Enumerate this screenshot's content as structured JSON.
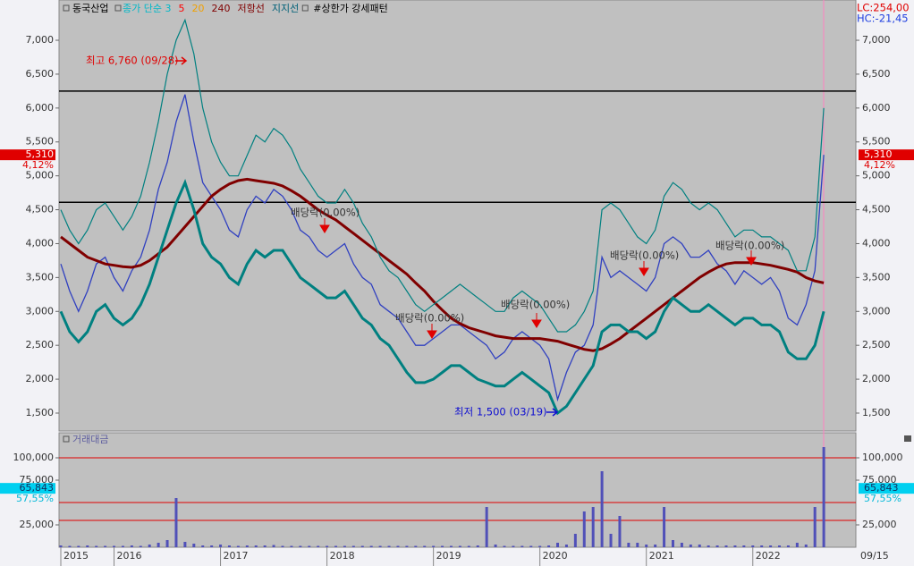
{
  "header": {
    "stock": "동국산업",
    "legend": [
      {
        "text": "종가 단순 3",
        "color": "#00b8c8"
      },
      {
        "text": "5",
        "color": "#ff0000"
      },
      {
        "text": "20",
        "color": "#f0a000"
      },
      {
        "text": "240",
        "color": "#800000"
      },
      {
        "text": "저항선",
        "color": "#800000"
      },
      {
        "text": "지지선",
        "color": "#006078"
      },
      {
        "text": "#상한가 강세패턴",
        "color": "#000000"
      }
    ],
    "lc": "LC:254,00",
    "hc": "HC:-21,45",
    "x_end_label": "09/15"
  },
  "chart_data": [
    {
      "type": "line",
      "categories": [
        "2015",
        null,
        null,
        null,
        null,
        null,
        "2016",
        null,
        null,
        null,
        null,
        null,
        null,
        null,
        null,
        null,
        null,
        null,
        "2017",
        null,
        null,
        null,
        null,
        null,
        null,
        null,
        null,
        null,
        null,
        null,
        "2018",
        null,
        null,
        null,
        null,
        null,
        null,
        null,
        null,
        null,
        null,
        null,
        "2019",
        null,
        null,
        null,
        null,
        null,
        null,
        null,
        null,
        null,
        null,
        null,
        "2020",
        null,
        null,
        null,
        null,
        null,
        null,
        null,
        null,
        null,
        null,
        null,
        "2021",
        null,
        null,
        null,
        null,
        null,
        null,
        null,
        null,
        null,
        null,
        null,
        "2022",
        null,
        null,
        null,
        null,
        null,
        null,
        null,
        null
      ],
      "series": [
        {
          "name": "종가",
          "color": "#3040c0",
          "values": [
            3700,
            3300,
            3000,
            3300,
            3700,
            3800,
            3500,
            3300,
            3600,
            3800,
            4200,
            4800,
            5200,
            5800,
            6200,
            5500,
            4900,
            4700,
            4500,
            4200,
            4100,
            4500,
            4700,
            4600,
            4800,
            4700,
            4500,
            4200,
            4100,
            3900,
            3800,
            3900,
            4000,
            3700,
            3500,
            3400,
            3100,
            3000,
            2900,
            2700,
            2500,
            2500,
            2600,
            2700,
            2800,
            2800,
            2700,
            2600,
            2500,
            2300,
            2400,
            2600,
            2700,
            2600,
            2500,
            2300,
            1700,
            2100,
            2400,
            2500,
            2800,
            3800,
            3500,
            3600,
            3500,
            3400,
            3300,
            3500,
            4000,
            4100,
            4000,
            3800,
            3800,
            3900,
            3700,
            3600,
            3400,
            3600,
            3500,
            3400,
            3500,
            3300,
            2900,
            2800,
            3100,
            3600,
            5310
          ]
        },
        {
          "name": "240",
          "color": "#800000",
          "width": 3,
          "values": [
            4100,
            4000,
            3900,
            3800,
            3750,
            3700,
            3680,
            3660,
            3650,
            3680,
            3750,
            3850,
            3950,
            4100,
            4250,
            4400,
            4550,
            4700,
            4800,
            4880,
            4930,
            4950,
            4930,
            4910,
            4890,
            4850,
            4780,
            4700,
            4600,
            4500,
            4420,
            4350,
            4250,
            4150,
            4050,
            3950,
            3850,
            3750,
            3650,
            3550,
            3420,
            3300,
            3150,
            3020,
            2900,
            2820,
            2760,
            2720,
            2680,
            2640,
            2620,
            2600,
            2600,
            2600,
            2600,
            2580,
            2560,
            2520,
            2480,
            2440,
            2420,
            2450,
            2520,
            2600,
            2700,
            2800,
            2900,
            3000,
            3100,
            3200,
            3300,
            3400,
            3500,
            3580,
            3650,
            3700,
            3720,
            3720,
            3720,
            3700,
            3680,
            3650,
            3620,
            3580,
            3500,
            3450,
            3420
          ]
        },
        {
          "name": "저항선",
          "color": "#008080",
          "width": 1.2,
          "values": [
            4500,
            4200,
            4000,
            4200,
            4500,
            4600,
            4400,
            4200,
            4400,
            4700,
            5200,
            5800,
            6500,
            7000,
            7300,
            6800,
            6000,
            5500,
            5200,
            5000,
            5000,
            5300,
            5600,
            5500,
            5700,
            5600,
            5400,
            5100,
            4900,
            4700,
            4600,
            4600,
            4800,
            4600,
            4300,
            4100,
            3800,
            3600,
            3500,
            3300,
            3100,
            3000,
            3100,
            3200,
            3300,
            3400,
            3300,
            3200,
            3100,
            3000,
            3000,
            3200,
            3300,
            3200,
            3100,
            2900,
            2700,
            2700,
            2800,
            3000,
            3300,
            4500,
            4600,
            4500,
            4300,
            4100,
            4000,
            4200,
            4700,
            4900,
            4800,
            4600,
            4500,
            4600,
            4500,
            4300,
            4100,
            4200,
            4200,
            4100,
            4100,
            4000,
            3900,
            3600,
            3600,
            4100,
            6000
          ]
        },
        {
          "name": "지지선",
          "color": "#008080",
          "width": 3,
          "values": [
            3000,
            2700,
            2550,
            2700,
            3000,
            3100,
            2900,
            2800,
            2900,
            3100,
            3400,
            3800,
            4200,
            4600,
            4900,
            4500,
            4000,
            3800,
            3700,
            3500,
            3400,
            3700,
            3900,
            3800,
            3900,
            3900,
            3700,
            3500,
            3400,
            3300,
            3200,
            3200,
            3300,
            3100,
            2900,
            2800,
            2600,
            2500,
            2300,
            2100,
            1950,
            1950,
            2000,
            2100,
            2200,
            2200,
            2100,
            2000,
            1950,
            1900,
            1900,
            2000,
            2100,
            2000,
            1900,
            1800,
            1500,
            1600,
            1800,
            2000,
            2200,
            2700,
            2800,
            2800,
            2700,
            2700,
            2600,
            2700,
            3000,
            3200,
            3100,
            3000,
            3000,
            3100,
            3000,
            2900,
            2800,
            2900,
            2900,
            2800,
            2800,
            2700,
            2400,
            2300,
            2300,
            2500,
            3000
          ]
        }
      ],
      "ylim": [
        1236,
        7594
      ],
      "yticks": [
        {
          "value": 1500,
          "label": "1,500"
        },
        {
          "value": 2000,
          "label": "2,000"
        },
        {
          "value": 2500,
          "label": "2,500"
        },
        {
          "value": 3000,
          "label": "3,000"
        },
        {
          "value": 3500,
          "label": "3,500"
        },
        {
          "value": 4000,
          "label": "4,000"
        },
        {
          "value": 4500,
          "label": "4,500"
        },
        {
          "value": 5000,
          "label": "5,000"
        },
        {
          "value": 5500,
          "label": "5,500"
        },
        {
          "value": 6000,
          "label": "6,000"
        },
        {
          "value": 6500,
          "label": "6,500"
        },
        {
          "value": 7000,
          "label": "7,000"
        }
      ],
      "hlines": [
        6250,
        4610
      ],
      "current": {
        "value": 5310,
        "label": "5,310",
        "change": "4,12%"
      },
      "annotations": [
        "최고 6,760 (09/28)",
        "배당락(0.00%)",
        "배당락(0.00%)",
        "배당락(0.00%)",
        "배당락(0.00%)",
        "배당락(0.00%)",
        "최저 1,500 (03/19)"
      ]
    },
    {
      "type": "bar",
      "title": "거래대금",
      "color": "#5050b8",
      "categories": [
        "2015",
        null,
        null,
        null,
        null,
        null,
        "2016",
        null,
        null,
        null,
        null,
        null,
        null,
        null,
        null,
        null,
        null,
        null,
        "2017",
        null,
        null,
        null,
        null,
        null,
        null,
        null,
        null,
        null,
        null,
        null,
        "2018",
        null,
        null,
        null,
        null,
        null,
        null,
        null,
        null,
        null,
        null,
        null,
        "2019",
        null,
        null,
        null,
        null,
        null,
        null,
        null,
        null,
        null,
        null,
        null,
        "2020",
        null,
        null,
        null,
        null,
        null,
        null,
        null,
        null,
        null,
        null,
        null,
        "2021",
        null,
        null,
        null,
        null,
        null,
        null,
        null,
        null,
        null,
        null,
        null,
        "2022",
        null,
        null,
        null,
        null,
        null,
        null,
        null,
        null
      ],
      "values": [
        2000,
        1500,
        1500,
        2000,
        1500,
        1500,
        1500,
        1500,
        2000,
        1500,
        3000,
        5000,
        8000,
        55000,
        6000,
        4000,
        2000,
        2000,
        3000,
        2000,
        1500,
        2000,
        2000,
        2000,
        2500,
        1500,
        1500,
        1500,
        1500,
        1500,
        1500,
        1500,
        1500,
        1500,
        1500,
        1500,
        1500,
        1500,
        1500,
        1500,
        1500,
        1500,
        1500,
        1500,
        1500,
        1500,
        1500,
        2000,
        45000,
        3000,
        1500,
        1500,
        1500,
        1500,
        1500,
        2000,
        5000,
        3000,
        15000,
        40000,
        45000,
        85000,
        15000,
        35000,
        5000,
        5000,
        3000,
        3000,
        45000,
        8000,
        5000,
        3000,
        3000,
        2000,
        2000,
        2000,
        2000,
        2000,
        2000,
        2000,
        2000,
        2000,
        2000,
        5000,
        3000,
        45000,
        112000
      ],
      "ylim": [
        0,
        128000
      ],
      "yticks": [
        {
          "value": 25000,
          "label": "25,000"
        },
        {
          "value": 75000,
          "label": "75,000"
        },
        {
          "value": 100000,
          "label": "100,000"
        }
      ],
      "hlines": [
        100000,
        50000,
        30000
      ],
      "current": {
        "value": 65843,
        "label": "65,843",
        "change": "57,55%"
      }
    }
  ]
}
